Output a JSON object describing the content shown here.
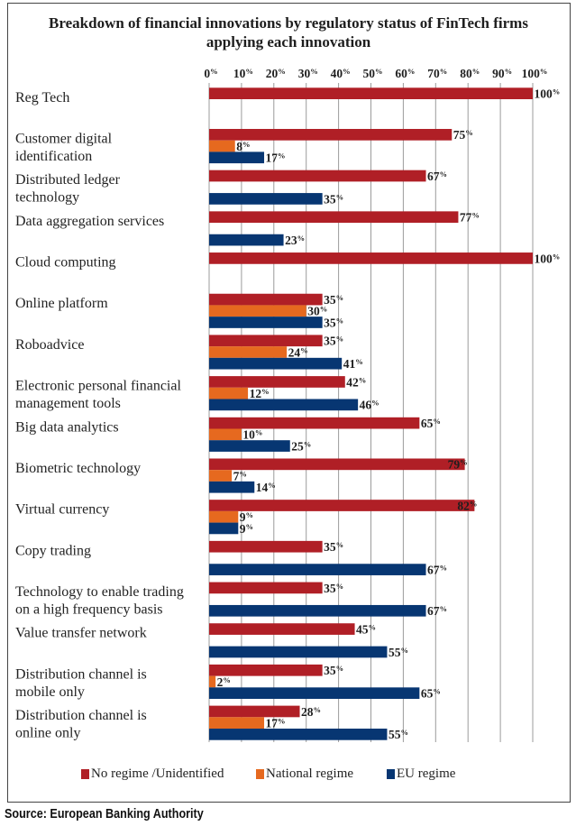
{
  "title": {
    "line1": "Breakdown of financial innovations by regulatory status of FinTech firms",
    "line2": "applying each innovation"
  },
  "legend": [
    {
      "key": "no-regime",
      "label": "No regime /Unidentified",
      "color": "#b01f26"
    },
    {
      "key": "national-regime",
      "label": "National regime",
      "color": "#e6691f"
    },
    {
      "key": "eu-regime",
      "label": "EU regime",
      "color": "#073672"
    }
  ],
  "source": "Source: European Banking Authority",
  "chart_data": {
    "type": "bar",
    "orientation": "horizontal",
    "title": "Breakdown of financial innovations by regulatory status of FinTech firms applying each innovation",
    "xlabel": "",
    "ylabel": "",
    "xlim": [
      0,
      100
    ],
    "x_ticks": [
      0,
      10,
      20,
      30,
      40,
      50,
      60,
      70,
      80,
      90,
      100
    ],
    "x_tick_labels": [
      "0%",
      "10%",
      "20%",
      "30%",
      "40%",
      "50%",
      "60%",
      "70%",
      "80%",
      "90%",
      "100%"
    ],
    "x_axis_position": "top",
    "grid": true,
    "legend_position": "bottom",
    "value_suffix": "%",
    "categories": [
      "Reg Tech",
      "Customer digital identification",
      "Distributed ledger technology",
      "Data aggregation services",
      "Cloud computing",
      "Online platform",
      "Roboadvice",
      "Electronic personal financial management tools",
      "Big data analytics",
      "Biometric technology",
      "Virtual currency",
      "Copy trading",
      "Technology to enable trading on a high frequency basis",
      "Value transfer network",
      "Distribution channel is mobile only",
      "Distribution channel is online only"
    ],
    "category_label_lines": [
      [
        "Reg Tech"
      ],
      [
        "Customer digital",
        "identification"
      ],
      [
        "Distributed ledger",
        "technology"
      ],
      [
        "Data aggregation services"
      ],
      [
        "Cloud computing"
      ],
      [
        "Online platform"
      ],
      [
        "Roboadvice"
      ],
      [
        "Electronic personal financial",
        "management tools"
      ],
      [
        "Big data analytics"
      ],
      [
        "Biometric technology"
      ],
      [
        "Virtual currency"
      ],
      [
        "Copy trading"
      ],
      [
        "Technology to enable trading",
        "on a high frequency basis"
      ],
      [
        "Value transfer network"
      ],
      [
        "Distribution channel is",
        "mobile only"
      ],
      [
        "Distribution channel is",
        "online only"
      ]
    ],
    "series": [
      {
        "name": "No regime /Unidentified",
        "key": "no-regime",
        "color": "#b01f26",
        "values": [
          100,
          75,
          67,
          77,
          100,
          35,
          35,
          42,
          65,
          79,
          82,
          35,
          35,
          45,
          35,
          28
        ]
      },
      {
        "name": "National regime",
        "key": "national-regime",
        "color": "#e6691f",
        "values": [
          null,
          8,
          null,
          null,
          null,
          30,
          24,
          12,
          10,
          7,
          9,
          null,
          null,
          null,
          2,
          17
        ]
      },
      {
        "name": "EU regime",
        "key": "eu-regime",
        "color": "#073672",
        "values": [
          null,
          17,
          35,
          23,
          null,
          35,
          41,
          46,
          25,
          14,
          9,
          67,
          67,
          55,
          65,
          55
        ]
      }
    ]
  }
}
